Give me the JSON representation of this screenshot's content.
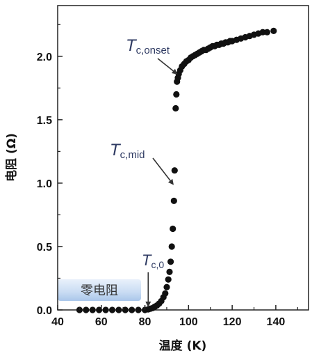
{
  "chart_data": {
    "type": "scatter",
    "xlabel": "温度 (K)",
    "ylabel": "电阻 (Ω)",
    "xlim": [
      40,
      155
    ],
    "ylim": [
      0,
      2.4
    ],
    "x_ticks": [
      "40",
      "60",
      "80",
      "100",
      "120",
      "140"
    ],
    "x_tick_values": [
      40,
      60,
      80,
      100,
      120,
      140
    ],
    "y_ticks": [
      "0.0",
      "0.5",
      "1.0",
      "1.5",
      "2.0"
    ],
    "y_tick_values": [
      0,
      0.5,
      1.0,
      1.5,
      2.0
    ],
    "grid": false,
    "series": [
      {
        "color": "#111111",
        "x": [
          50,
          53,
          56,
          59,
          62,
          65,
          68,
          71,
          74,
          77,
          80,
          81.5,
          82.5,
          83.5,
          84.5,
          85.5,
          86.5,
          87.5,
          88.5,
          89.3,
          90,
          90.7,
          91.3,
          91.8,
          92.3,
          92.8,
          93.3,
          93.6,
          94.1,
          94.4,
          94.7,
          95.1,
          95.5,
          96.2,
          97,
          98,
          99,
          100,
          101,
          102,
          103,
          104,
          105,
          106,
          107,
          108,
          109,
          110,
          111,
          112,
          113,
          114,
          115,
          116,
          117,
          118,
          119,
          120,
          122,
          124,
          126,
          128,
          130,
          132,
          134,
          136,
          139
        ],
        "y": [
          0,
          0,
          0,
          0,
          0,
          0,
          0,
          0,
          0,
          0,
          0,
          0.005,
          0.01,
          0.015,
          0.025,
          0.035,
          0.05,
          0.07,
          0.1,
          0.13,
          0.18,
          0.24,
          0.3,
          0.38,
          0.5,
          0.64,
          0.86,
          1.1,
          1.59,
          1.7,
          1.8,
          1.83,
          1.86,
          1.89,
          1.92,
          1.94,
          1.96,
          1.97,
          1.99,
          2.0,
          2.01,
          2.02,
          2.03,
          2.04,
          2.05,
          2.05,
          2.06,
          2.07,
          2.08,
          2.08,
          2.09,
          2.09,
          2.1,
          2.1,
          2.11,
          2.11,
          2.12,
          2.12,
          2.13,
          2.14,
          2.15,
          2.16,
          2.17,
          2.18,
          2.19,
          2.19,
          2.2
        ]
      }
    ],
    "annotations": [
      {
        "id": "onset",
        "italic": "T",
        "sub": "c,onset",
        "target_x": 94.5,
        "target_y": 1.82
      },
      {
        "id": "mid",
        "italic": "T",
        "sub": "c,mid",
        "target_x": 92.8,
        "target_y": 0.95
      },
      {
        "id": "zero",
        "italic": "T",
        "sub": "c,0",
        "target_x": 81.5,
        "target_y": 0.0
      }
    ],
    "zero_resistance_label": "零电阻"
  }
}
